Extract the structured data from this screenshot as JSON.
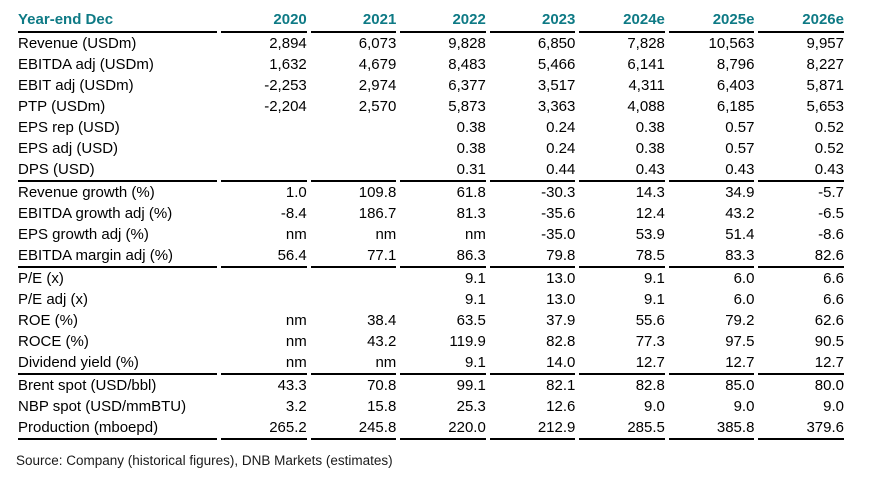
{
  "table": {
    "columns": [
      "Year-end Dec",
      "2020",
      "2021",
      "2022",
      "2023",
      "2024e",
      "2025e",
      "2026e"
    ],
    "sections": [
      {
        "name": "income-statement",
        "rows": [
          {
            "label": "Revenue (USDm)",
            "values": [
              "2,894",
              "6,073",
              "9,828",
              "6,850",
              "7,828",
              "10,563",
              "9,957"
            ]
          },
          {
            "label": "EBITDA adj (USDm)",
            "values": [
              "1,632",
              "4,679",
              "8,483",
              "5,466",
              "6,141",
              "8,796",
              "8,227"
            ]
          },
          {
            "label": "EBIT adj (USDm)",
            "values": [
              "-2,253",
              "2,974",
              "6,377",
              "3,517",
              "4,311",
              "6,403",
              "5,871"
            ]
          },
          {
            "label": "PTP (USDm)",
            "values": [
              "-2,204",
              "2,570",
              "5,873",
              "3,363",
              "4,088",
              "6,185",
              "5,653"
            ]
          },
          {
            "label": "EPS rep (USD)",
            "values": [
              "",
              "",
              "0.38",
              "0.24",
              "0.38",
              "0.57",
              "0.52"
            ]
          },
          {
            "label": "EPS adj (USD)",
            "values": [
              "",
              "",
              "0.38",
              "0.24",
              "0.38",
              "0.57",
              "0.52"
            ]
          },
          {
            "label": "DPS (USD)",
            "values": [
              "",
              "",
              "0.31",
              "0.44",
              "0.43",
              "0.43",
              "0.43"
            ]
          }
        ]
      },
      {
        "name": "growth-margins",
        "rows": [
          {
            "label": "Revenue growth (%)",
            "values": [
              "1.0",
              "109.8",
              "61.8",
              "-30.3",
              "14.3",
              "34.9",
              "-5.7"
            ]
          },
          {
            "label": "EBITDA growth adj (%)",
            "values": [
              "-8.4",
              "186.7",
              "81.3",
              "-35.6",
              "12.4",
              "43.2",
              "-6.5"
            ]
          },
          {
            "label": "EPS growth adj (%)",
            "values": [
              "nm",
              "nm",
              "nm",
              "-35.0",
              "53.9",
              "51.4",
              "-8.6"
            ]
          },
          {
            "label": "EBITDA margin adj (%)",
            "values": [
              "56.4",
              "77.1",
              "86.3",
              "79.8",
              "78.5",
              "83.3",
              "82.6"
            ]
          }
        ]
      },
      {
        "name": "valuation-returns",
        "rows": [
          {
            "label": "P/E (x)",
            "values": [
              "",
              "",
              "9.1",
              "13.0",
              "9.1",
              "6.0",
              "6.6"
            ]
          },
          {
            "label": "P/E adj (x)",
            "values": [
              "",
              "",
              "9.1",
              "13.0",
              "9.1",
              "6.0",
              "6.6"
            ]
          },
          {
            "label": "ROE (%)",
            "values": [
              "nm",
              "38.4",
              "63.5",
              "37.9",
              "55.6",
              "79.2",
              "62.6"
            ]
          },
          {
            "label": "ROCE (%)",
            "values": [
              "nm",
              "43.2",
              "119.9",
              "82.8",
              "77.3",
              "97.5",
              "90.5"
            ]
          },
          {
            "label": "Dividend yield (%)",
            "values": [
              "nm",
              "nm",
              "9.1",
              "14.0",
              "12.7",
              "12.7",
              "12.7"
            ]
          }
        ]
      },
      {
        "name": "commodities-production",
        "rows": [
          {
            "label": "Brent spot (USD/bbl)",
            "values": [
              "43.3",
              "70.8",
              "99.1",
              "82.1",
              "82.8",
              "85.0",
              "80.0"
            ]
          },
          {
            "label": "NBP spot (USD/mmBTU)",
            "values": [
              "3.2",
              "15.8",
              "25.3",
              "12.6",
              "9.0",
              "9.0",
              "9.0"
            ]
          },
          {
            "label": "Production (mboepd)",
            "values": [
              "265.2",
              "245.8",
              "220.0",
              "212.9",
              "285.5",
              "385.8",
              "379.6"
            ]
          }
        ]
      }
    ]
  },
  "footer": {
    "source": "Source: Company (historical figures), DNB Markets (estimates)"
  },
  "colors": {
    "header_text": "#0e7a85",
    "rule": "#000000",
    "body_text": "#000000",
    "background": "#ffffff"
  }
}
